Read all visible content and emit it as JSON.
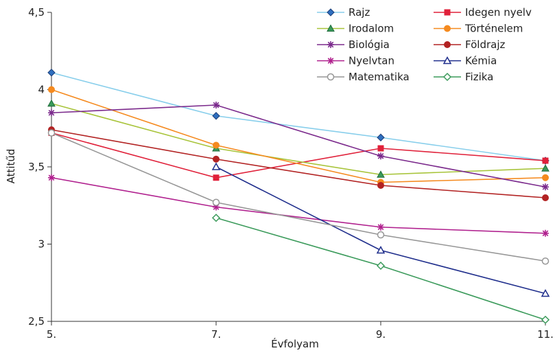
{
  "chart_data": {
    "type": "line",
    "xlabel": "Évfolyam",
    "ylabel": "Attitűd",
    "categories": [
      "5.",
      "7.",
      "9.",
      "11."
    ],
    "ylim": [
      2.5,
      4.5
    ],
    "yticks": [
      "2,5",
      "3",
      "3,5",
      "4",
      "4,5"
    ],
    "ytick_values": [
      2.5,
      3,
      3.5,
      4,
      4.5
    ],
    "grid": false,
    "legend_position": "top-right",
    "series": [
      {
        "name": "Rajz",
        "color": "#87CEEB",
        "marker": "diamond",
        "values": [
          4.11,
          3.83,
          3.69,
          3.54
        ]
      },
      {
        "name": "Idegen nyelv",
        "color": "#E0213A",
        "marker": "square",
        "values": [
          3.72,
          3.43,
          3.62,
          3.54
        ]
      },
      {
        "name": "Irodalom",
        "color": "#A8C43A",
        "marker": "triangle",
        "values": [
          3.91,
          3.62,
          3.45,
          3.49
        ]
      },
      {
        "name": "Történelem",
        "color": "#F58A1F",
        "marker": "circle",
        "values": [
          4.0,
          3.64,
          3.4,
          3.43
        ]
      },
      {
        "name": "Biológia",
        "color": "#7B2A8C",
        "marker": "star",
        "values": [
          3.85,
          3.9,
          3.57,
          3.37
        ]
      },
      {
        "name": "Földrajz",
        "color": "#B22222",
        "marker": "circle",
        "values": [
          3.74,
          3.55,
          3.38,
          3.3
        ]
      },
      {
        "name": "Nyelvtan",
        "color": "#B0208E",
        "marker": "star",
        "values": [
          3.43,
          3.24,
          3.11,
          3.07
        ]
      },
      {
        "name": "Kémia",
        "color": "#1F2E8C",
        "marker": "triangle-open",
        "values": [
          null,
          3.5,
          2.96,
          2.68
        ]
      },
      {
        "name": "Matematika",
        "color": "#969696",
        "marker": "circle-open",
        "values": [
          3.72,
          3.27,
          3.06,
          2.89
        ]
      },
      {
        "name": "Fizika",
        "color": "#3A9A5A",
        "marker": "diamond-open",
        "values": [
          null,
          3.17,
          2.86,
          2.51
        ]
      }
    ]
  }
}
